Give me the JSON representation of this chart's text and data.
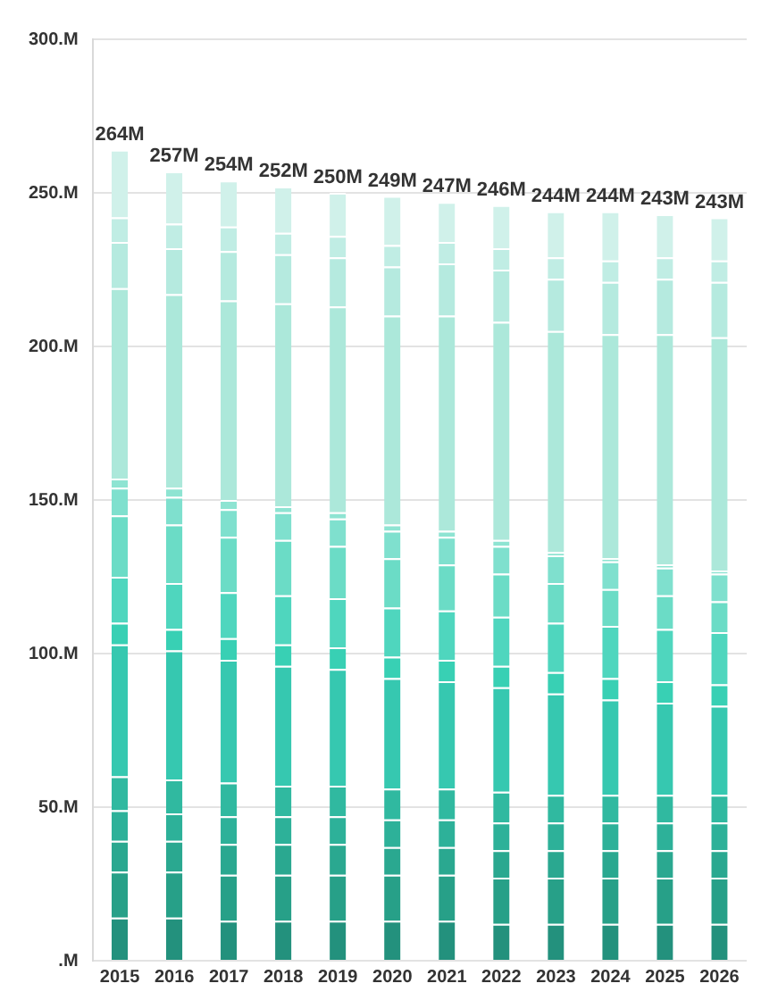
{
  "chart_data": {
    "type": "bar",
    "stacked": true,
    "categories": [
      "2015",
      "2016",
      "2017",
      "2018",
      "2019",
      "2020",
      "2021",
      "2022",
      "2023",
      "2024",
      "2025",
      "2026"
    ],
    "series": [
      {
        "color": "#23917d",
        "values": [
          14,
          14,
          13,
          13,
          13,
          13,
          13,
          12,
          12,
          12,
          12,
          12
        ]
      },
      {
        "color": "#27a088",
        "values": [
          15,
          15,
          15,
          15,
          15,
          15,
          15,
          15,
          15,
          15,
          15,
          15
        ]
      },
      {
        "color": "#2aa890",
        "values": [
          10,
          10,
          10,
          10,
          10,
          9,
          9,
          9,
          9,
          9,
          9,
          9
        ]
      },
      {
        "color": "#2db199",
        "values": [
          10,
          9,
          9,
          9,
          9,
          9,
          9,
          9,
          9,
          9,
          9,
          9
        ]
      },
      {
        "color": "#30b9a0",
        "values": [
          11,
          11,
          11,
          10,
          10,
          10,
          10,
          10,
          9,
          9,
          9,
          9
        ]
      },
      {
        "color": "#36c8b0",
        "values": [
          43,
          42,
          40,
          39,
          38,
          36,
          35,
          34,
          33,
          31,
          30,
          29
        ]
      },
      {
        "color": "#38d0b4",
        "values": [
          7,
          7,
          7,
          7,
          7,
          7,
          7,
          7,
          7,
          7,
          7,
          7
        ]
      },
      {
        "color": "#4fd6be",
        "values": [
          15,
          15,
          15,
          16,
          16,
          16,
          16,
          16,
          16,
          17,
          17,
          17
        ]
      },
      {
        "color": "#6bdcc6",
        "values": [
          20,
          19,
          18,
          18,
          17,
          16,
          15,
          14,
          13,
          12,
          11,
          10
        ]
      },
      {
        "color": "#7fe0ce",
        "values": [
          9,
          9,
          9,
          9,
          9,
          9,
          9,
          9,
          9,
          9,
          9,
          9
        ]
      },
      {
        "color": "#8ee4d2",
        "values": [
          3,
          3,
          3,
          2,
          2,
          2,
          2,
          2,
          1,
          1,
          1,
          1
        ]
      },
      {
        "color": "#ace8da",
        "values": [
          62,
          63,
          65,
          66,
          67,
          68,
          70,
          71,
          72,
          73,
          75,
          76
        ]
      },
      {
        "color": "#b5eadf",
        "values": [
          15,
          15,
          16,
          16,
          16,
          16,
          17,
          17,
          17,
          17,
          18,
          18
        ]
      },
      {
        "color": "#c0ede4",
        "values": [
          8,
          8,
          8,
          7,
          7,
          7,
          7,
          7,
          7,
          7,
          7,
          7
        ]
      },
      {
        "color": "#d0f1ea",
        "values": [
          22,
          17,
          15,
          15,
          14,
          16,
          13,
          14,
          15,
          16,
          14,
          14
        ]
      }
    ],
    "totals": [
      "264M",
      "257M",
      "254M",
      "252M",
      "250M",
      "249M",
      "247M",
      "246M",
      "244M",
      "244M",
      "243M",
      "243M"
    ],
    "ylim": [
      0,
      300
    ],
    "yticks": [
      {
        "value": 0,
        "label": ".M"
      },
      {
        "value": 50,
        "label": "50.M"
      },
      {
        "value": 100,
        "label": "100.M"
      },
      {
        "value": 150,
        "label": "150.M"
      },
      {
        "value": 200,
        "label": "200.M"
      },
      {
        "value": 250,
        "label": "250.M"
      },
      {
        "value": 300,
        "label": "300.M"
      }
    ],
    "grid": "y",
    "legend": false
  }
}
